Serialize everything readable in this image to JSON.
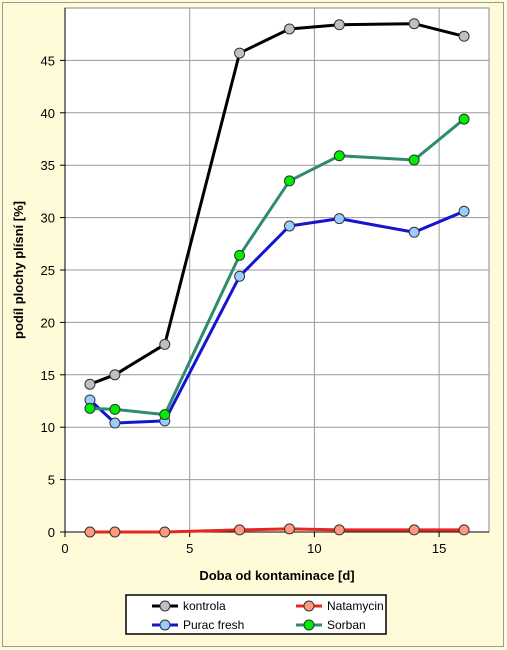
{
  "chart_data": {
    "type": "line",
    "title": "",
    "xlabel": "Doba od kontaminace [d]",
    "ylabel": "podíl plochy plísní [%]",
    "xlim": [
      0,
      17
    ],
    "ylim": [
      0,
      50
    ],
    "xticks": [
      0,
      5,
      10,
      15
    ],
    "yticks": [
      0,
      5,
      10,
      15,
      20,
      25,
      30,
      35,
      40,
      45
    ],
    "grid": true,
    "legend_position": "bottom",
    "x": [
      1,
      2,
      4,
      7,
      9,
      11,
      14,
      16
    ],
    "series": [
      {
        "name": "kontrola",
        "line_color": "#000000",
        "marker_color": "#c0c0c0",
        "values": [
          14.1,
          15.0,
          17.9,
          45.7,
          48.0,
          48.4,
          48.5,
          47.3
        ]
      },
      {
        "name": "Natamycin",
        "line_color": "#e8261e",
        "marker_color": "#ff9a80",
        "values": [
          0.0,
          0.0,
          0.0,
          0.2,
          0.3,
          0.2,
          0.2,
          0.2
        ]
      },
      {
        "name": "Purac fresh",
        "line_color": "#1515d0",
        "marker_color": "#99ccff",
        "values": [
          12.6,
          10.4,
          10.6,
          24.4,
          29.2,
          29.9,
          28.6,
          30.6
        ]
      },
      {
        "name": "Sorban",
        "line_color": "#2e8b6e",
        "marker_color": "#00ee00",
        "values": [
          11.8,
          11.7,
          11.2,
          26.4,
          33.5,
          35.9,
          35.5,
          39.4
        ]
      }
    ]
  }
}
